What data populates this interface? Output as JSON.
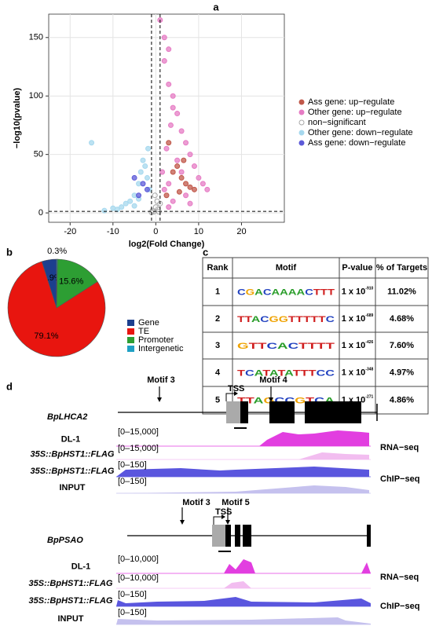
{
  "panel_a": {
    "label": "a",
    "chart_data": {
      "type": "scatter",
      "xlabel": "log2(Fold Change)",
      "ylabel": "−log10(pvalue)",
      "xlim": [
        -25,
        30
      ],
      "ylim": [
        -8,
        170
      ],
      "xticks": [
        -20,
        -10,
        0,
        10,
        20
      ],
      "yticks": [
        0,
        50,
        100,
        150
      ],
      "grid": true,
      "legend": "right",
      "thresholds": {
        "x": [
          -1,
          1
        ],
        "y": 1.3
      },
      "series": [
        {
          "name": "Ass gene: up−regulate",
          "color": "#c0584a",
          "x": [
            5,
            6,
            8,
            3,
            4,
            7,
            2.5,
            9,
            6.5,
            5.5
          ],
          "values": [
            40,
            30,
            22,
            60,
            35,
            25,
            15,
            20,
            45,
            18
          ]
        },
        {
          "name": "Other gene: up−regulate",
          "color": "#e67cc4",
          "x": [
            1,
            2,
            3,
            4,
            5,
            6,
            7,
            8,
            9,
            10,
            11,
            12,
            2,
            3,
            4,
            2.5,
            3.5,
            1.5,
            5,
            6,
            7,
            4,
            3,
            8,
            2,
            3
          ],
          "values": [
            165,
            150,
            110,
            100,
            85,
            70,
            60,
            50,
            40,
            30,
            25,
            20,
            130,
            140,
            90,
            55,
            75,
            35,
            45,
            35,
            15,
            10,
            5,
            8,
            20,
            25
          ]
        },
        {
          "name": "non−significant",
          "color": "#a8a8a8",
          "x": [
            -1,
            -0.5,
            0,
            0.5,
            1,
            -0.8,
            0.3,
            -0.2,
            0.7
          ],
          "values": [
            0.5,
            1,
            5,
            3,
            8,
            2,
            10,
            15,
            1
          ]
        },
        {
          "name": "Other gene: down−regulate",
          "color": "#a6d8ee",
          "x": [
            -1.5,
            -2,
            -3,
            -4,
            -5,
            -6,
            -7,
            -8,
            -9,
            -10,
            -12,
            -2.5,
            -3.5,
            -1.8,
            -15,
            -5,
            -4
          ],
          "values": [
            20,
            30,
            45,
            25,
            15,
            10,
            8,
            5,
            3,
            4,
            2,
            40,
            35,
            55,
            60,
            6,
            12
          ]
        },
        {
          "name": "Ass gene: down−regulate",
          "color": "#5c5ad8",
          "x": [
            -2,
            -3,
            -4,
            -5
          ],
          "values": [
            20,
            25,
            15,
            30
          ]
        }
      ]
    }
  },
  "panel_b": {
    "label": "b",
    "chart_data": {
      "type": "pie",
      "categories": [
        "Gene",
        "TE",
        "Promoter",
        "Intergenetic"
      ],
      "values": [
        4.9,
        79.1,
        15.6,
        0.3
      ],
      "value_labels": [
        "4.9%",
        "79.1%",
        "15.6%",
        "0.3%"
      ],
      "colors": [
        "#1c3f8e",
        "#e8150f",
        "#2d9e33",
        "#1fa0c4"
      ],
      "legend": "right"
    }
  },
  "panel_c": {
    "label": "c",
    "table": {
      "header": [
        "Rank",
        "Motif",
        "P-value",
        "% of Targets"
      ],
      "rows": [
        [
          "1",
          "CGACAAAACTTT",
          {
            "base": "1 x 10",
            "exp": "-910"
          },
          "11.02%"
        ],
        [
          "2",
          "TTACGGTTTTTC",
          {
            "base": "1 x 10",
            "exp": "-689"
          },
          "4.68%"
        ],
        [
          "3",
          "GTTCACTTTT",
          {
            "base": "1 x 10",
            "exp": "-426"
          },
          "7.60%"
        ],
        [
          "4",
          "TCATATATTTCC",
          {
            "base": "1 x 10",
            "exp": "-348"
          },
          "4.97%"
        ],
        [
          "5",
          "TTAGCCGTCA",
          {
            "base": "1 x 10",
            "exp": "-271"
          },
          "4.86%"
        ]
      ]
    }
  },
  "panel_d": {
    "label": "d",
    "genes": [
      {
        "name": "BpLHCA2",
        "motifs": [
          "Motif 3",
          "Motif 4"
        ],
        "tss": "TSS",
        "tracks": [
          {
            "sample": "DL-1",
            "range": "[0–15,000]"
          },
          {
            "sample": "35S::BpHST1::FLAG",
            "range": "[0–15,000]"
          },
          {
            "sample": "35S::BpHST1::FLAG",
            "range": "[0–150]"
          },
          {
            "sample": "INPUT",
            "range": "[0–150]"
          }
        ],
        "assays": [
          "RNA−seq",
          "ChIP−seq"
        ]
      },
      {
        "name": "BpPSAO",
        "motifs": [
          "Motif 3",
          "Motif 5"
        ],
        "tss": "TSS",
        "tracks": [
          {
            "sample": "DL-1",
            "range": "[0–10,000]"
          },
          {
            "sample": "35S::BpHST1::FLAG",
            "range": "[0–10,000]"
          },
          {
            "sample": "35S::BpHST1::FLAG",
            "range": "[0–150]"
          },
          {
            "sample": "INPUT",
            "range": "[0–150]"
          }
        ],
        "assays": [
          "RNA−seq",
          "ChIP−seq"
        ]
      }
    ]
  }
}
